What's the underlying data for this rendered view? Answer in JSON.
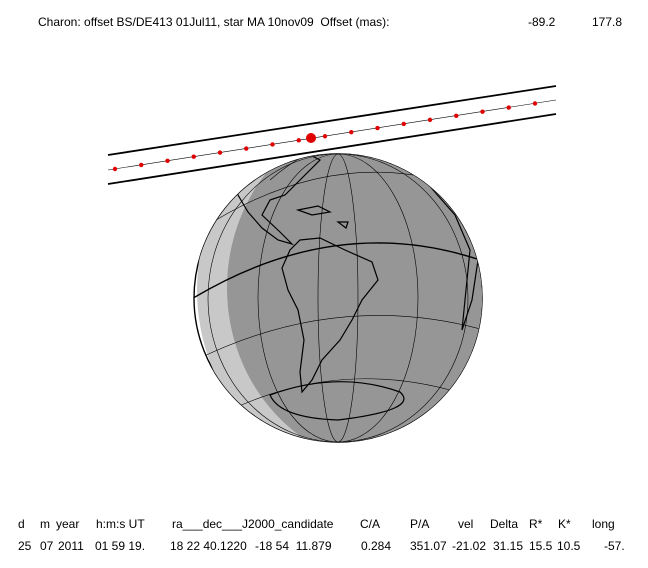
{
  "header": {
    "title": "Charon: offset BS/DE413 01Jul11, star MA 10nov09  Offset (mas):",
    "offset_ra": "-89.2",
    "offset_dec": "177.8"
  },
  "table": {
    "columns": [
      "d",
      "m",
      "year",
      "h:m:s UT",
      "ra___dec___J2000_candidate",
      "C/A",
      "P/A",
      "vel",
      "Delta",
      "R*",
      "K*",
      "long"
    ],
    "rows": [
      [
        "25",
        "07",
        "2011",
        "01 59 19.",
        "18 22 40.1220",
        "-18 54  11.879",
        "0.284",
        "351.07",
        "-21.02",
        "31.15",
        "15.5",
        "10.5",
        "-57."
      ]
    ]
  }
}
